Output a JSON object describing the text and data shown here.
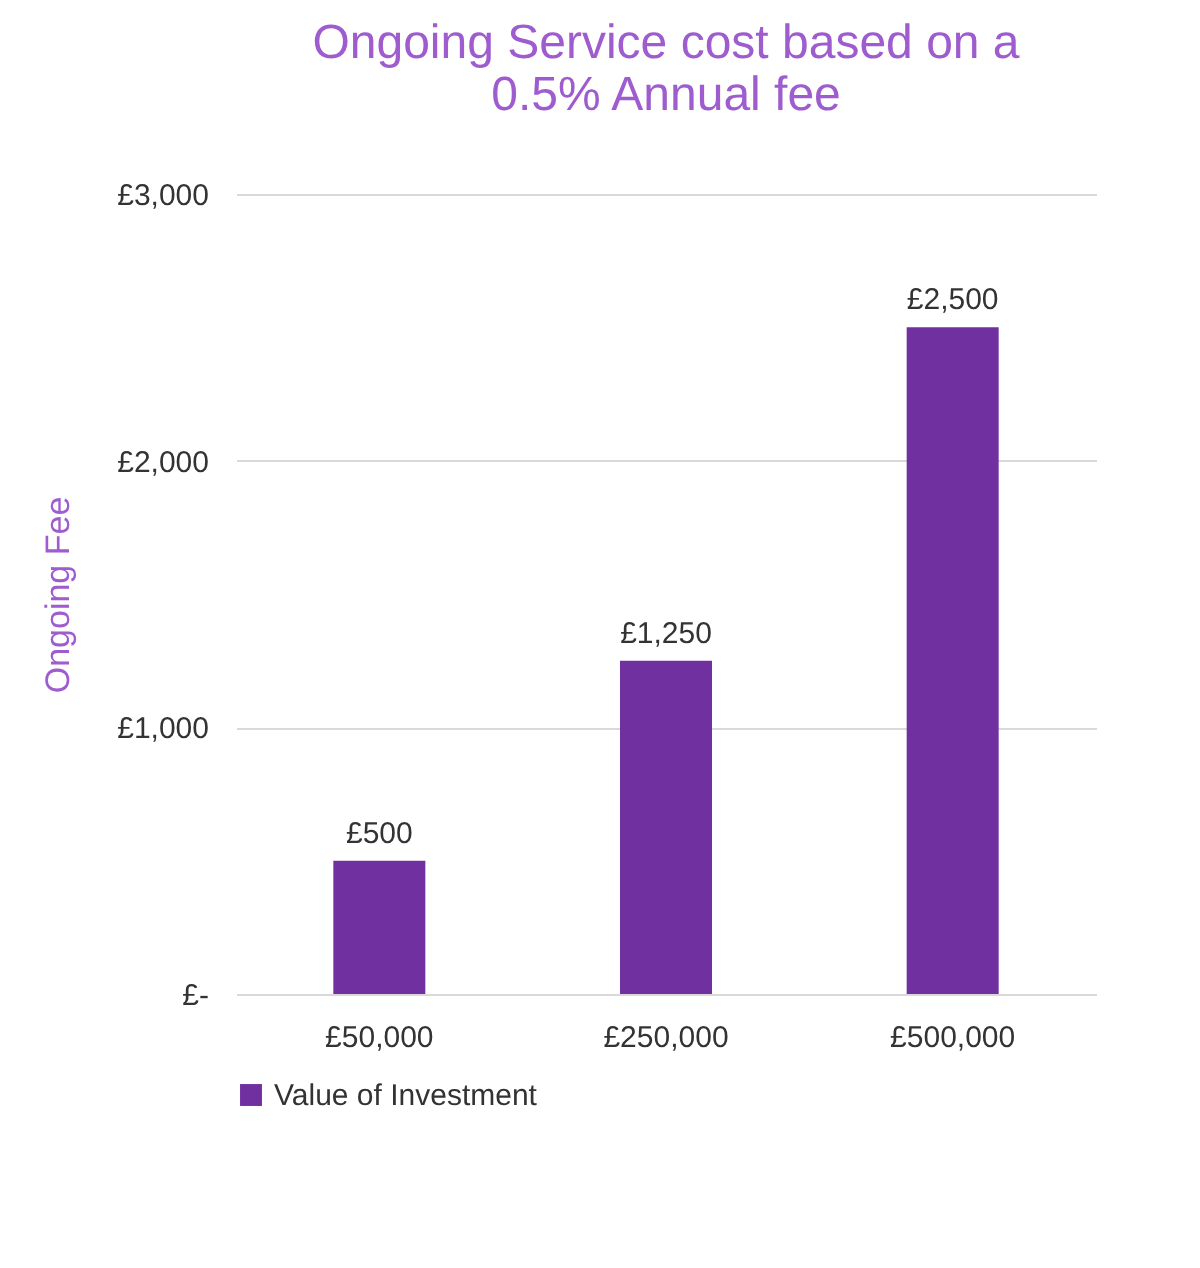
{
  "chart_data": {
    "type": "bar",
    "title": "Ongoing Service cost based on a\n0.5% Annual fee",
    "ylabel": "Ongoing Fee",
    "categories": [
      "£50,000",
      "£250,000",
      "£500,000"
    ],
    "series": [
      {
        "name": "Value of Investment",
        "color": "#7030a0",
        "values": [
          500,
          1250,
          2500
        ],
        "value_labels": [
          "£500",
          "£1,250",
          "£2,500"
        ]
      }
    ],
    "ylim": [
      0,
      3000
    ],
    "yticks": [
      {
        "value": 0,
        "label": "£-"
      },
      {
        "value": 1000,
        "label": "£1,000"
      },
      {
        "value": 2000,
        "label": "£2,000"
      },
      {
        "value": 3000,
        "label": "£3,000"
      }
    ],
    "grid": "y",
    "legend": "bottom"
  }
}
